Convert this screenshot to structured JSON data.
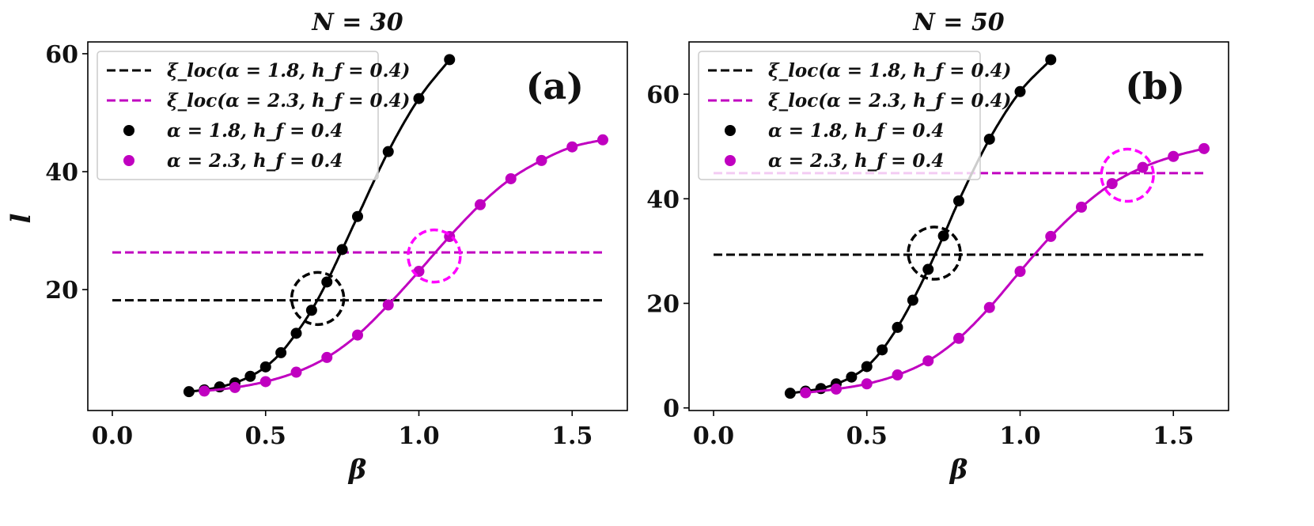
{
  "chart_data": [
    {
      "type": "line",
      "panel": "(a)",
      "title": "N = 30",
      "xlabel": "β",
      "ylabel": "l",
      "xlim": [
        -0.08,
        1.68
      ],
      "ylim": [
        -0.5,
        62
      ],
      "xticks": [
        0.0,
        0.5,
        1.0,
        1.5
      ],
      "xtick_labels": [
        "0.0",
        "0.5",
        "1.0",
        "1.5"
      ],
      "yticks": [
        20,
        40,
        60
      ],
      "ytick_labels": [
        "20",
        "40",
        "60"
      ],
      "grid": false,
      "legend_position": "top-left",
      "series": [
        {
          "name": "ξ_loc(α = 1.8, h_f = 0.4)",
          "kind": "hline",
          "style": "dashed",
          "color": "#000000",
          "y": 18.2,
          "x": [
            0.0,
            1.6
          ]
        },
        {
          "name": "ξ_loc(α = 2.3, h_f = 0.4)",
          "kind": "hline",
          "style": "dashed",
          "color": "#c000c0",
          "y": 26.3,
          "x": [
            0.0,
            1.6
          ]
        },
        {
          "name": "α = 1.8, h_f = 0.4",
          "kind": "markers+fit",
          "color": "#000000",
          "x": [
            0.25,
            0.3,
            0.35,
            0.4,
            0.45,
            0.5,
            0.55,
            0.6,
            0.65,
            0.7,
            0.75,
            0.8,
            0.9,
            1.0,
            1.1
          ],
          "y": [
            2.7,
            3.0,
            3.5,
            4.2,
            5.3,
            6.9,
            9.3,
            12.6,
            16.5,
            21.3,
            26.8,
            32.4,
            43.4,
            52.4,
            59.0
          ]
        },
        {
          "name": "α = 2.3, h_f = 0.4",
          "kind": "markers+fit",
          "color": "#c000c0",
          "x": [
            0.3,
            0.4,
            0.5,
            0.6,
            0.7,
            0.8,
            0.9,
            1.0,
            1.1,
            1.2,
            1.3,
            1.4,
            1.5,
            1.6
          ],
          "y": [
            2.8,
            3.4,
            4.4,
            6.0,
            8.5,
            12.3,
            17.4,
            23.1,
            29.0,
            34.4,
            38.8,
            41.9,
            44.2,
            45.4
          ]
        }
      ],
      "annotations": [
        {
          "shape": "dashed-circle",
          "color": "#000000",
          "x": 0.67,
          "y": 18.5
        },
        {
          "shape": "dashed-circle",
          "color": "#ff00ff",
          "x": 1.05,
          "y": 25.7
        }
      ]
    },
    {
      "type": "line",
      "panel": "(b)",
      "title": "N = 50",
      "xlabel": "β",
      "ylabel": "",
      "xlim": [
        -0.08,
        1.68
      ],
      "ylim": [
        -0.5,
        70
      ],
      "xticks": [
        0.0,
        0.5,
        1.0,
        1.5
      ],
      "xtick_labels": [
        "0.0",
        "0.5",
        "1.0",
        "1.5"
      ],
      "yticks": [
        0,
        20,
        40,
        60
      ],
      "ytick_labels": [
        "0",
        "20",
        "40",
        "60"
      ],
      "grid": false,
      "legend_position": "top-left",
      "series": [
        {
          "name": "ξ_loc(α = 1.8, h_f = 0.4)",
          "kind": "hline",
          "style": "dashed",
          "color": "#000000",
          "y": 29.3,
          "x": [
            0.0,
            1.6
          ]
        },
        {
          "name": "ξ_loc(α = 2.3, h_f = 0.4)",
          "kind": "hline",
          "style": "dashed",
          "color": "#c000c0",
          "y": 44.9,
          "x": [
            0.0,
            1.6
          ]
        },
        {
          "name": "α = 1.8, h_f = 0.4",
          "kind": "markers+fit",
          "color": "#000000",
          "x": [
            0.25,
            0.3,
            0.35,
            0.4,
            0.45,
            0.5,
            0.55,
            0.6,
            0.65,
            0.7,
            0.75,
            0.8,
            0.9,
            1.0,
            1.1
          ],
          "y": [
            2.8,
            3.2,
            3.7,
            4.6,
            5.9,
            7.9,
            11.1,
            15.4,
            20.6,
            26.5,
            32.9,
            39.6,
            51.4,
            60.5,
            66.6
          ]
        },
        {
          "name": "α = 2.3, h_f = 0.4",
          "kind": "markers+fit",
          "color": "#c000c0",
          "x": [
            0.3,
            0.4,
            0.5,
            0.6,
            0.7,
            0.8,
            0.9,
            1.0,
            1.1,
            1.2,
            1.3,
            1.4,
            1.5,
            1.6
          ],
          "y": [
            2.9,
            3.6,
            4.6,
            6.3,
            9.0,
            13.3,
            19.2,
            26.1,
            32.8,
            38.4,
            42.9,
            46.0,
            48.1,
            49.6
          ]
        }
      ],
      "annotations": [
        {
          "shape": "dashed-circle",
          "color": "#000000",
          "x": 0.72,
          "y": 29.6
        },
        {
          "shape": "dashed-circle",
          "color": "#ff00ff",
          "x": 1.35,
          "y": 44.5
        }
      ]
    }
  ]
}
